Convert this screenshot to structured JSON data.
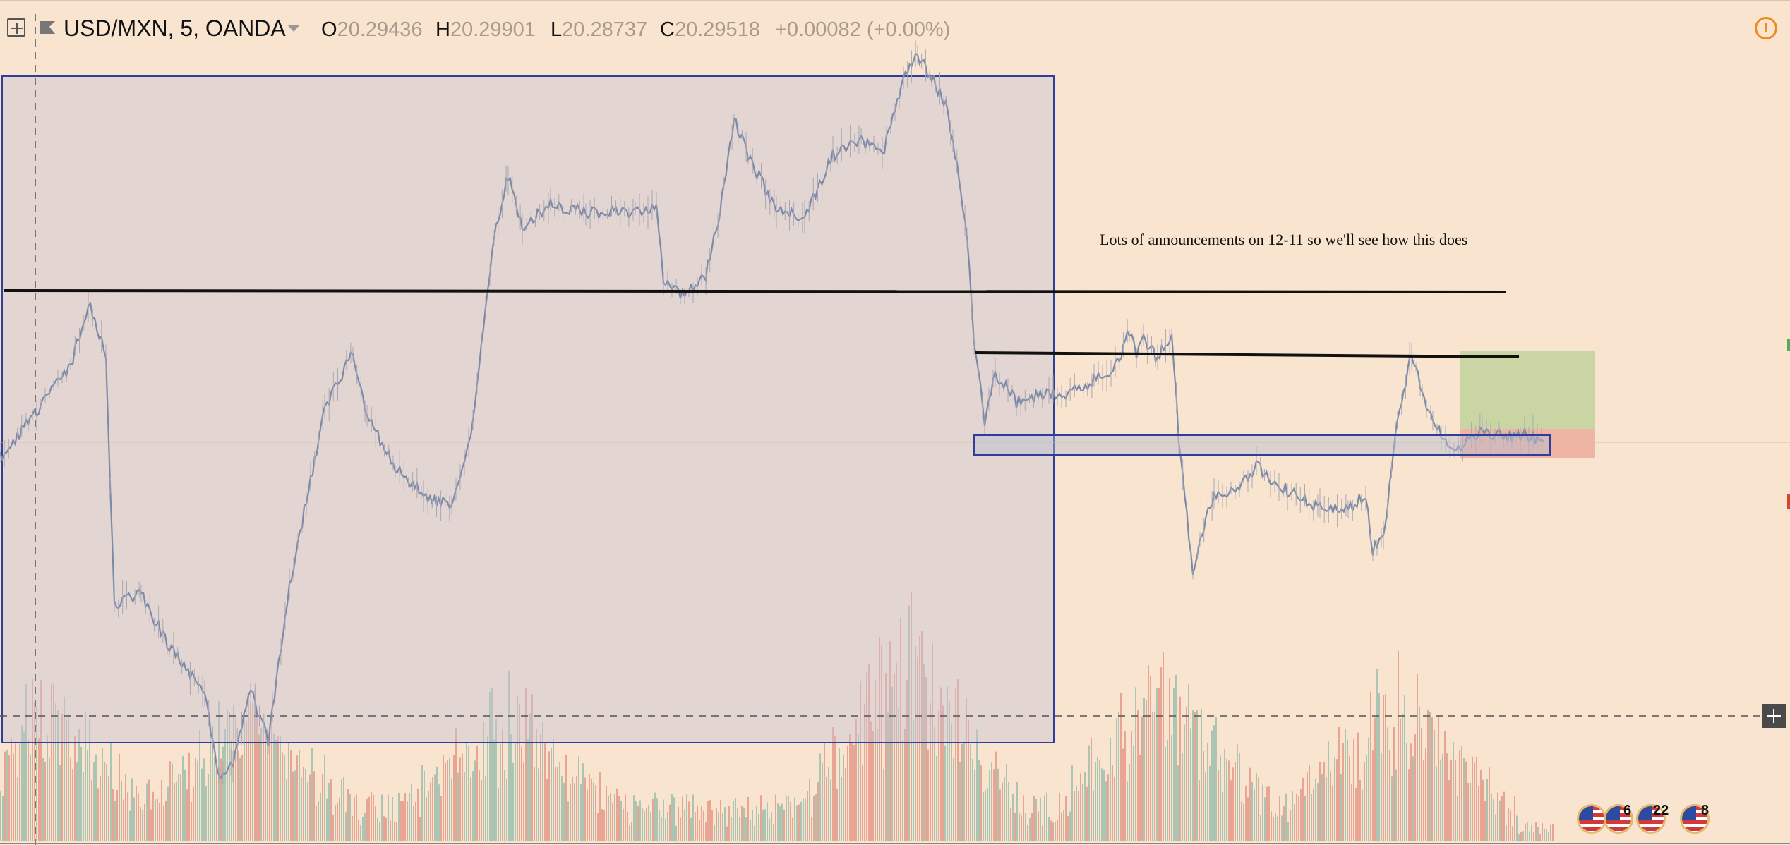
{
  "header": {
    "symbol": "USD/MXN, 5, OANDA",
    "open_label": "O",
    "open": "20.29436",
    "high_label": "H",
    "high": "20.29901",
    "low_label": "L",
    "low": "20.28737",
    "close_label": "C",
    "close": "20.29518",
    "change": "+0.00082 (+0.00%)"
  },
  "annotation": "Lots of announcements on 12-11 so we'll see how this does",
  "events": [
    {
      "count": ""
    },
    {
      "count": "6"
    },
    {
      "count": "22"
    },
    {
      "count": "8"
    }
  ],
  "colors": {
    "background": "#f8e4cf",
    "price_line": "#7b8aa8",
    "zone_border": "#2d3f9a",
    "volume_up": "#9fbfae",
    "volume_down": "#e59a8a",
    "target": "#c9d6a4",
    "stop": "#f0b4a4",
    "alert": "#f08a1e"
  },
  "icons": [
    "add-indicator-icon",
    "flag-icon",
    "dropdown-caret-icon",
    "alert-icon",
    "crosshair-plus-icon",
    "us-flag-event-icon"
  ]
}
